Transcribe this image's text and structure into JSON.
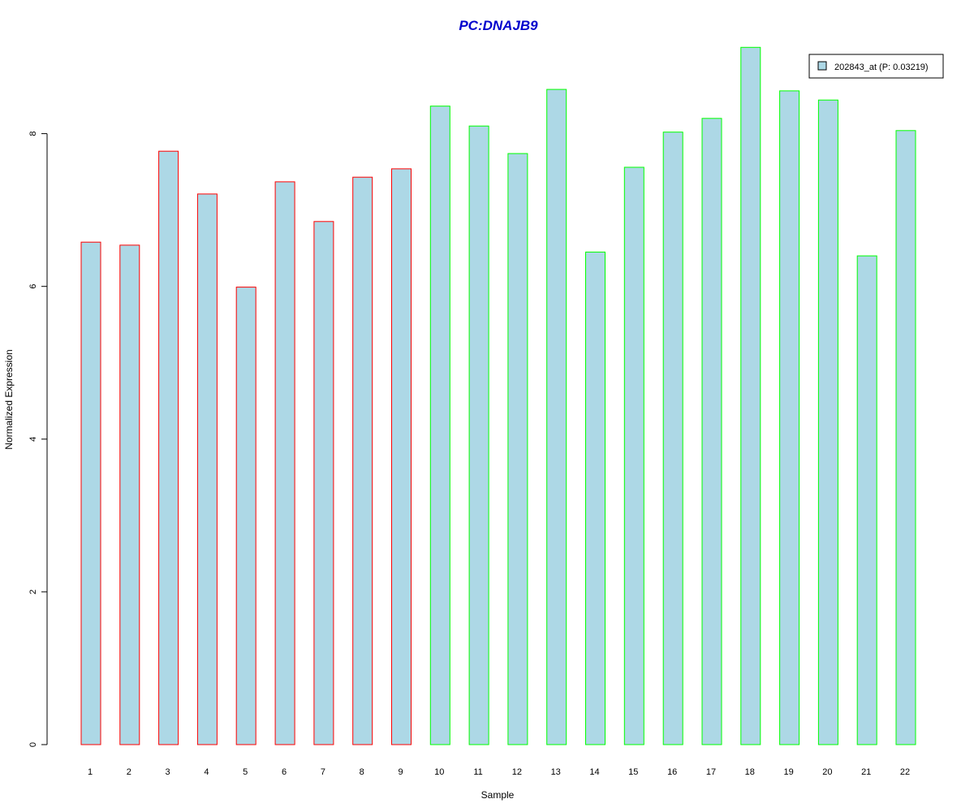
{
  "chart_data": {
    "type": "bar",
    "title": "PC:DNAJB9",
    "xlabel": "Sample",
    "ylabel": "Normalized Expression",
    "categories": [
      "1",
      "2",
      "3",
      "4",
      "5",
      "6",
      "7",
      "8",
      "9",
      "10",
      "11",
      "12",
      "13",
      "14",
      "15",
      "16",
      "17",
      "18",
      "19",
      "20",
      "21",
      "22"
    ],
    "series": [
      {
        "name": "202843_at (P: 0.03219)",
        "values": [
          6.58,
          6.54,
          7.77,
          7.21,
          5.99,
          7.37,
          6.85,
          7.43,
          7.54,
          8.36,
          8.1,
          7.74,
          8.58,
          6.45,
          7.56,
          8.02,
          8.2,
          9.13,
          8.56,
          8.44,
          6.4,
          8.04
        ]
      }
    ],
    "yticks": [
      0,
      2,
      4,
      6,
      8
    ],
    "ylim": [
      0,
      9.2
    ],
    "grid": false,
    "legend_position": "top-right",
    "colors": {
      "bar_fill": "#add8e6",
      "group_1_border": "#ff0000",
      "group_2_border": "#00ff00",
      "title": "#0000cd"
    },
    "bar_border_colors": [
      "#ff0000",
      "#ff0000",
      "#ff0000",
      "#ff0000",
      "#ff0000",
      "#ff0000",
      "#ff0000",
      "#ff0000",
      "#ff0000",
      "#00ff00",
      "#00ff00",
      "#00ff00",
      "#00ff00",
      "#00ff00",
      "#00ff00",
      "#00ff00",
      "#00ff00",
      "#00ff00",
      "#00ff00",
      "#00ff00",
      "#00ff00",
      "#00ff00"
    ]
  }
}
